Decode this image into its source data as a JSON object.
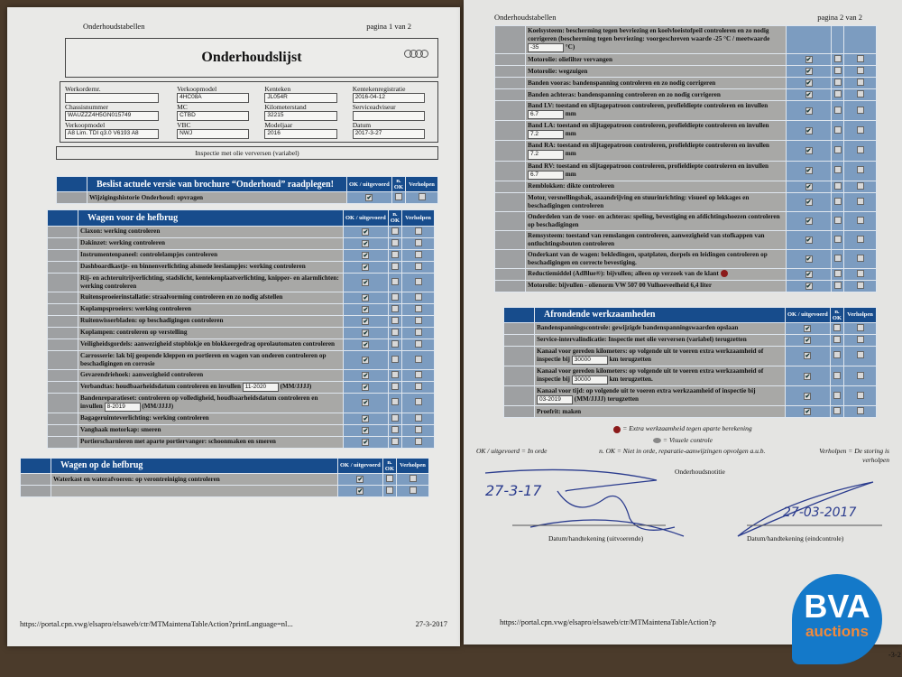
{
  "page1": {
    "header": "Onderhoudstabellen",
    "pageno": "pagina 1 van 2",
    "title": "Onderhoudslijst",
    "fields": [
      {
        "label": "Werkordernr.",
        "value": ""
      },
      {
        "label": "Verkoopmodel",
        "value": "4HC08A"
      },
      {
        "label": "Kenteken",
        "value": "JL054R"
      },
      {
        "label": "Kentekenregistratie",
        "value": "2016-04-12"
      },
      {
        "label": "Chassisnummer",
        "value": "WAUZZZ4H5GN015749"
      },
      {
        "label": "MC",
        "value": "CTBD"
      },
      {
        "label": "Kilometerstand",
        "value": "32215"
      },
      {
        "label": "Serviceadviseur",
        "value": ""
      },
      {
        "label": "Verkoopmodel",
        "value": "A8 Lim. TDI q3.0 V6193 A8"
      },
      {
        "label": "VBC",
        "value": "NWJ"
      },
      {
        "label": "Modeljaar",
        "value": "2016"
      },
      {
        "label": "Datum",
        "value": "2017-3-27"
      }
    ],
    "inspection": "Inspectie met olie verversen (variabel)",
    "footer_url": "https://portal.cpn.vwg/elsapro/elsaweb/ctr/MTMaintenaTableAction?printLanguage=nl...",
    "footer_date": "27-3-2017"
  },
  "columns": {
    "ok": "OK / uitgevoerd",
    "nok": "n. OK",
    "fixed": "Verholpen"
  },
  "tables": {
    "t1": {
      "title": "Beslist actuele versie van brochure “Onderhoud” raadplegen!",
      "rows": [
        {
          "text": "Wijzigingshistorie Onderhoud: opvragen",
          "checks": [
            true,
            false,
            false
          ]
        }
      ]
    },
    "t2": {
      "title": "Wagen voor de hefbrug",
      "rows": [
        {
          "text": "Claxon: werking controleren",
          "checks": [
            true,
            false,
            false
          ]
        },
        {
          "text": "Dakinzet: werking controleren",
          "checks": [
            true,
            false,
            false
          ]
        },
        {
          "text": "Instrumentenpaneel: controlelampjes controleren",
          "checks": [
            true,
            false,
            false
          ]
        },
        {
          "text": "Dashboardkastje- en binnenverlichting alsmede leeslampjes: werking controleren",
          "checks": [
            true,
            false,
            false
          ]
        },
        {
          "text": "Rij- en achteruitrijverlichting, stadslicht, kentekenplaatverlichting, knipper- en alarmlichten: werking controleren",
          "checks": [
            true,
            false,
            false
          ]
        },
        {
          "text": "Ruitensproeierinstallatie: straalvorming controleren en zo nodig afstellen",
          "checks": [
            true,
            false,
            false
          ]
        },
        {
          "text": "Koplampsproeiers: werking controleren",
          "checks": [
            true,
            false,
            false
          ]
        },
        {
          "text": "Ruitenwisserbladen: op beschadigingen controleren",
          "checks": [
            true,
            false,
            false
          ]
        },
        {
          "text": "Koplampen: controleren op verstelling",
          "checks": [
            true,
            false,
            false
          ]
        },
        {
          "text": "Veiligheidsgordels: aanwezigheid stopblokje en blokkeergedrag oprolautomaten controleren",
          "checks": [
            true,
            false,
            false
          ]
        },
        {
          "text": "Carrosserie: lak bij geopende kleppen en portieren en wagen van onderen controleren op beschadigingen en corrosie",
          "checks": [
            true,
            false,
            false
          ]
        },
        {
          "text": "Gevarendriehoek: aanwezigheid controleren",
          "checks": [
            true,
            false,
            false
          ]
        },
        {
          "text": "Verbandtas: houdbaarheidsdatum controleren en invullen",
          "input": "11-2020",
          "post": "(MM/JJJJ)",
          "checks": [
            true,
            false,
            false
          ]
        },
        {
          "text": "Bandenreparatieset: controleren op volledigheid, houdbaarheidsdatum controleren en invullen",
          "input": "8-2019",
          "post": "(MM/JJJJ)",
          "checks": [
            true,
            false,
            false
          ]
        },
        {
          "text": "Bagageruimteverlichting: werking controleren",
          "checks": [
            true,
            false,
            false
          ]
        },
        {
          "text": "Vanghaak motorkap: smeren",
          "checks": [
            true,
            false,
            false
          ]
        },
        {
          "text": "Portierscharnieren met aparte portiervanger: schoonmaken en smeren",
          "checks": [
            true,
            false,
            false
          ]
        }
      ]
    },
    "t3": {
      "title": "Wagen op de hefbrug",
      "rows": [
        {
          "text": "Waterkast en waterafvoeren: op verontreiniging controleren",
          "checks": [
            true,
            false,
            false
          ]
        },
        {
          "text": "",
          "checks": [
            true,
            false,
            false
          ]
        }
      ]
    },
    "t4": {
      "title": "",
      "rows": [
        {
          "text": "Koelsysteem: bescherming tegen bevriezing en koelvloeistofpeil controleren en zo nodig corrigeren (bescherming tegen bevriezing: voorgeschreven waarde -25 °C / meetwaarde",
          "input": "-35",
          "post": "°C)",
          "checks": null
        },
        {
          "text": "Motorolie: oliefilter vervangen",
          "checks": [
            true,
            false,
            false
          ]
        },
        {
          "text": "Motorolie: wegzuigen",
          "checks": [
            true,
            false,
            false
          ]
        },
        {
          "text": "Banden vooras: bandenspanning controleren en zo nodig corrigeren",
          "checks": [
            true,
            false,
            false
          ]
        },
        {
          "text": "Banden achteras: bandenspanning controleren en zo nodig corrigeren",
          "checks": [
            true,
            false,
            false
          ]
        },
        {
          "text": "Band LV: toestand en slijtagepatroon controleren, profieldiepte controleren en invullen",
          "input": "6.7",
          "post": "mm",
          "checks": [
            true,
            false,
            false
          ]
        },
        {
          "text": "Band LA: toestand en slijtagepatroon controleren, profieldiepte controleren en invullen",
          "input": "7.2",
          "post": "mm",
          "checks": [
            true,
            false,
            false
          ]
        },
        {
          "text": "Band RA: toestand en slijtagepatroon controleren, profieldiepte controleren en invullen",
          "input": "7.2",
          "post": "mm",
          "checks": [
            true,
            false,
            false
          ]
        },
        {
          "text": "Band RV: toestand en slijtagepatroon controleren, profieldiepte controleren en invullen",
          "input": "6.7",
          "post": "mm",
          "checks": [
            true,
            false,
            false
          ]
        },
        {
          "text": "Remblokken: dikte controleren",
          "checks": [
            true,
            false,
            false
          ]
        },
        {
          "text": "Motor, versnellingsbak, asaandrijving en stuurinrichting: visueel op lekkages en beschadigingen controleren",
          "checks": [
            true,
            false,
            false
          ]
        },
        {
          "text": "Onderdelen van de voor- en achteras: speling, bevestiging en afdichtingshoezen controleren op beschadigingen",
          "checks": [
            true,
            false,
            false
          ]
        },
        {
          "text": "Remsysteem: toestand van remslangen controleren, aanwezigheid van stofkappen van ontluchtingsbouten controleren",
          "checks": [
            true,
            false,
            false
          ]
        },
        {
          "text": "Onderkant van de wagen: bekledingen, spatplaten, dorpels en leidingen controleren op beschadigingen en correcte bevestiging.",
          "checks": [
            true,
            false,
            false
          ]
        },
        {
          "text": "Reductiemiddel (AdBlue®): bijvullen; alleen op verzoek van de klant",
          "extra": true,
          "checks": [
            true,
            false,
            false
          ]
        },
        {
          "text": "Motorolie: bijvullen - olienorm VW 507 00 Vulhoeveelheid 6,4 liter",
          "checks": [
            true,
            false,
            false
          ]
        }
      ]
    },
    "t5": {
      "title": "Afrondende werkzaamheden",
      "rows": [
        {
          "text": "Bandenspanningscontrole: gewijzigde bandenspanningswaarden opslaan",
          "checks": [
            true,
            false,
            false
          ]
        },
        {
          "text": "Service-intervalindicatie: Inspectie met olie verversen (variabel) terugzetten",
          "checks": [
            true,
            false,
            false
          ]
        },
        {
          "text": "Kanaal voor gereden kilometers: op volgende uit te voeren extra werkzaamheid of inspectie bij",
          "input": "30000",
          "post": "km terugzetten",
          "checks": [
            true,
            false,
            false
          ]
        },
        {
          "text": "Kanaal voor gereden kilometers: op volgende uit te voeren extra werkzaamheid of inspectie bij",
          "input": "30000",
          "post": "km terugzetten.",
          "checks": [
            true,
            false,
            false
          ]
        },
        {
          "text": "Kanaal voor tijd: op volgende uit te voeren extra werkzaamheid of inspectie bij",
          "input": "03-2019",
          "post": "(MM/JJJJ) terugzetten",
          "checks": [
            true,
            false,
            false
          ]
        },
        {
          "text": "Proefrit: maken",
          "checks": [
            true,
            false,
            false
          ]
        }
      ]
    }
  },
  "page2": {
    "header": "Onderhoudstabellen",
    "pageno": "pagina 2 van 2",
    "legend_extra": "= Extra werkzaamheid tegen aparte berekening",
    "legend_visual": "= Visuele controle",
    "note_ok": "OK / uitgevoerd = In orde",
    "note_nok": "n. OK = Niet in orde, reparatie-aanwijzingen opvolgen a.u.b.",
    "note_fixed": "Verholpen = De storing is verholpen",
    "notes_label": "Onderhoudsnotitie",
    "sig_left_date": "27-3-17",
    "sig_right_date": "27-03-2017",
    "sig_left_label": "Datum/handtekening (uitvoerende)",
    "sig_right_label": "Datum/handtekening (eindcontrole)",
    "footer_url": "https://portal.cpn.vwg/elsapro/elsaweb/ctr/MTMaintenaTableAction?p",
    "footer_date": "-3-2"
  },
  "watermark": {
    "brand": "BVA",
    "sub": "auctions"
  },
  "colors": {
    "header_blue": "#174c8c",
    "cell_blue": "#7c9cc0",
    "row_grey": "#a8a8a6",
    "extra_dot": "#8b1a1a"
  }
}
